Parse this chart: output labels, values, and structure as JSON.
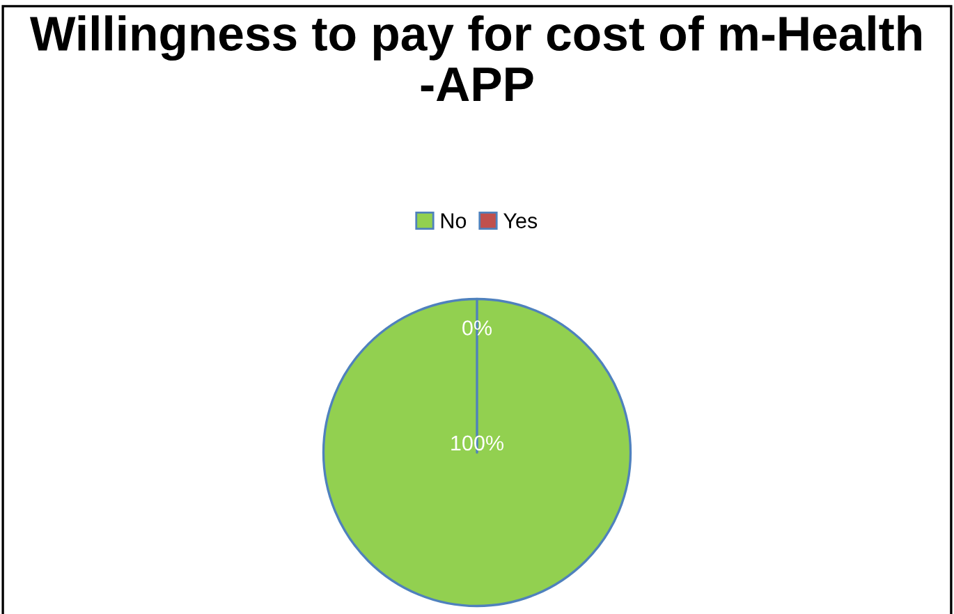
{
  "chart_data": {
    "type": "pie",
    "title": "Willingness to pay for cost of m-Health -APP",
    "categories": [
      "No",
      "Yes"
    ],
    "values": [
      100,
      0
    ],
    "colors": [
      "#92d050",
      "#c0504d"
    ],
    "value_labels": [
      "100%",
      "0%"
    ],
    "legend": "top"
  }
}
